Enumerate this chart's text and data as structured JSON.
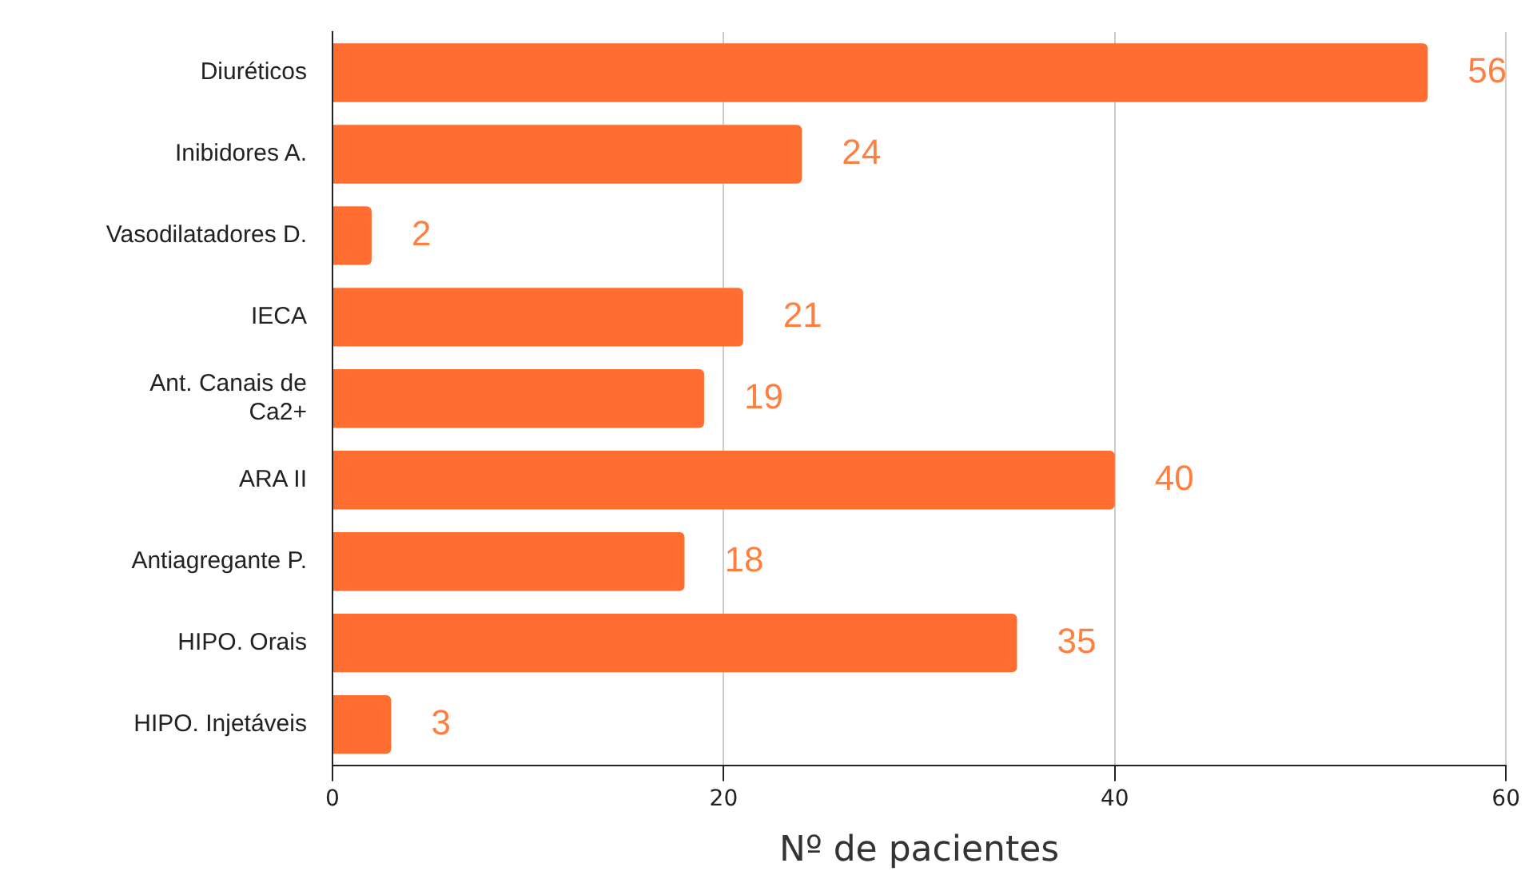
{
  "chart_data": {
    "type": "bar",
    "orientation": "horizontal",
    "xlabel": "Nº de pacientes",
    "categories": [
      "Diuréticos",
      "Inibidores A.",
      "Vasodilatadores D.",
      "IECA",
      "Ant. Canais de Ca2+",
      "ARA II",
      "Antiagregante P.",
      "HIPO. Orais",
      "HIPO. Injetáveis"
    ],
    "values": [
      56,
      24,
      2,
      21,
      19,
      40,
      18,
      35,
      3
    ],
    "color": "#ff6d31",
    "xlim": [
      0,
      60
    ],
    "xticks": [
      0,
      20,
      40,
      60
    ],
    "grid": "x",
    "data_labels": true,
    "legend": false
  }
}
